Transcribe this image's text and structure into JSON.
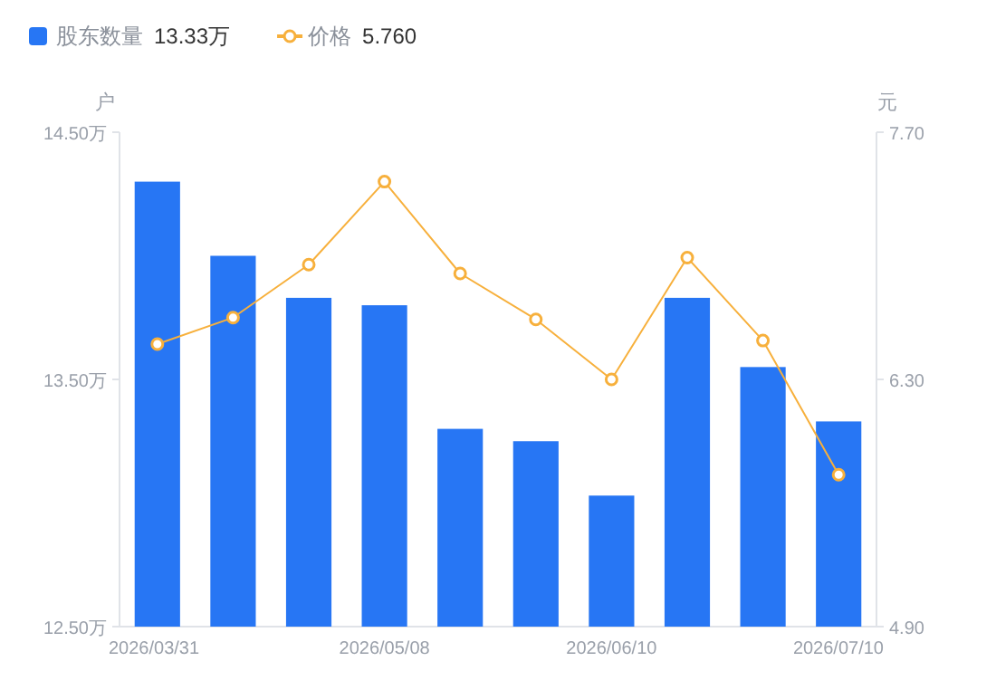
{
  "chart_data": {
    "type": "bar",
    "categories": [
      "2026/03/31",
      null,
      null,
      "2026/05/08",
      null,
      null,
      "2026/06/10",
      null,
      null,
      "2026/07/10"
    ],
    "ylabel": "户",
    "y2label": "元",
    "legend": "top left",
    "grid": false,
    "marker": "circle",
    "line_style": "solid",
    "ylim": [
      12.5,
      14.5
    ],
    "yticks": [
      {
        "value": 12.5,
        "label": "12.50万"
      },
      {
        "value": 13.5,
        "label": "13.50万"
      },
      {
        "value": 14.5,
        "label": "14.50万"
      }
    ],
    "y2lim": [
      4.9,
      7.7
    ],
    "y2ticks": [
      {
        "value": 4.9,
        "label": "4.90"
      },
      {
        "value": 6.3,
        "label": "6.30"
      },
      {
        "value": 7.7,
        "label": "7.70"
      }
    ],
    "annotations": [
      "13.33万",
      "5.760"
    ],
    "series": [
      {
        "name": "股东数量",
        "color": "#2776f4",
        "values": [
          14.3,
          14.0,
          13.83,
          13.8,
          13.3,
          13.25,
          13.03,
          13.83,
          13.55,
          13.33
        ]
      },
      {
        "name": "价格",
        "type": "line",
        "axis": "y2",
        "color": "#f7b03c",
        "values": [
          6.5,
          6.65,
          6.95,
          7.42,
          6.9,
          6.64,
          6.3,
          6.99,
          6.52,
          5.76
        ]
      }
    ]
  }
}
